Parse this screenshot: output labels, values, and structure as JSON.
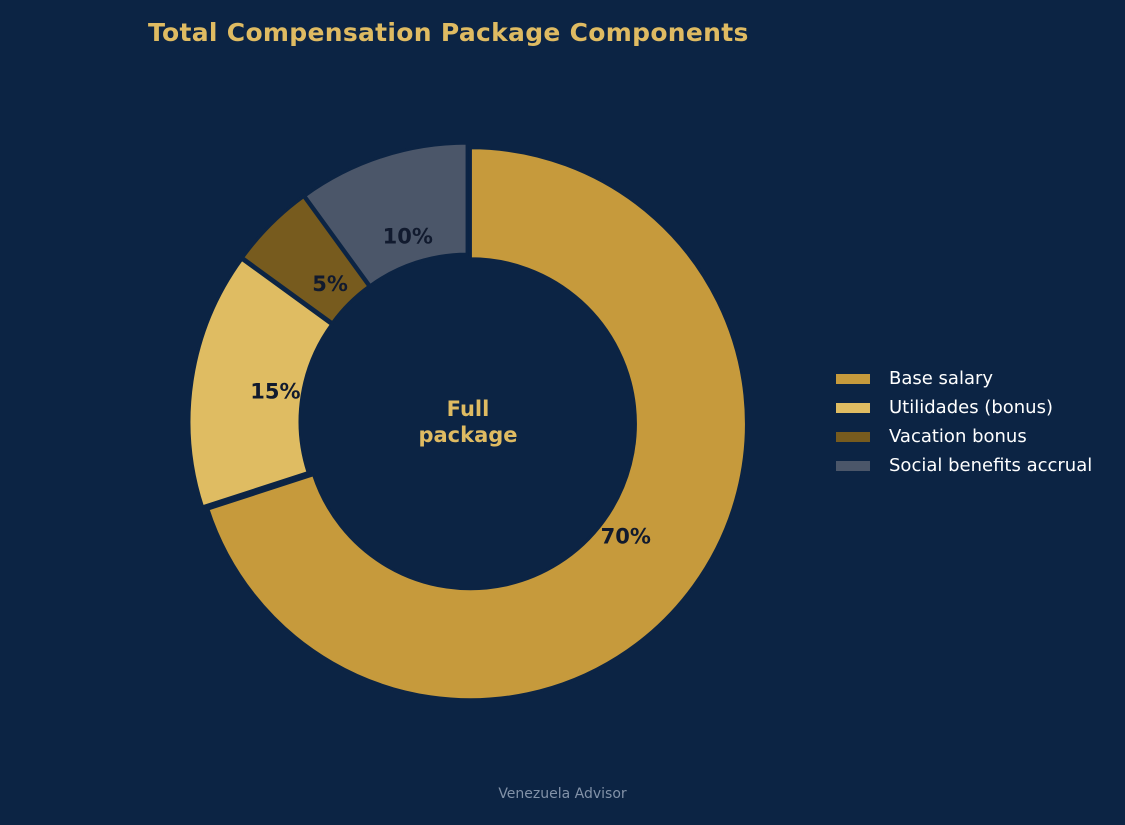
{
  "chart_data": {
    "type": "pie",
    "title": "Total Compensation Package Components",
    "center_label": [
      "Full",
      "package"
    ],
    "categories": [
      "Base salary",
      "Utilidades (bonus)",
      "Vacation bonus",
      "Social benefits accrual"
    ],
    "values": [
      70,
      15,
      5,
      10
    ],
    "value_labels": [
      "70%",
      "15%",
      "5%",
      "10%"
    ],
    "colors": [
      "#c69a3c",
      "#dfbc62",
      "#775b1e",
      "#4b5669"
    ],
    "label_color": "#111a2e",
    "legend_placement": "right",
    "donut": true
  },
  "footer": {
    "text": "Venezuela Advisor"
  },
  "colors": {
    "background": "#0c2444",
    "accent": "#dfbb62",
    "footer": "#8292a8"
  }
}
